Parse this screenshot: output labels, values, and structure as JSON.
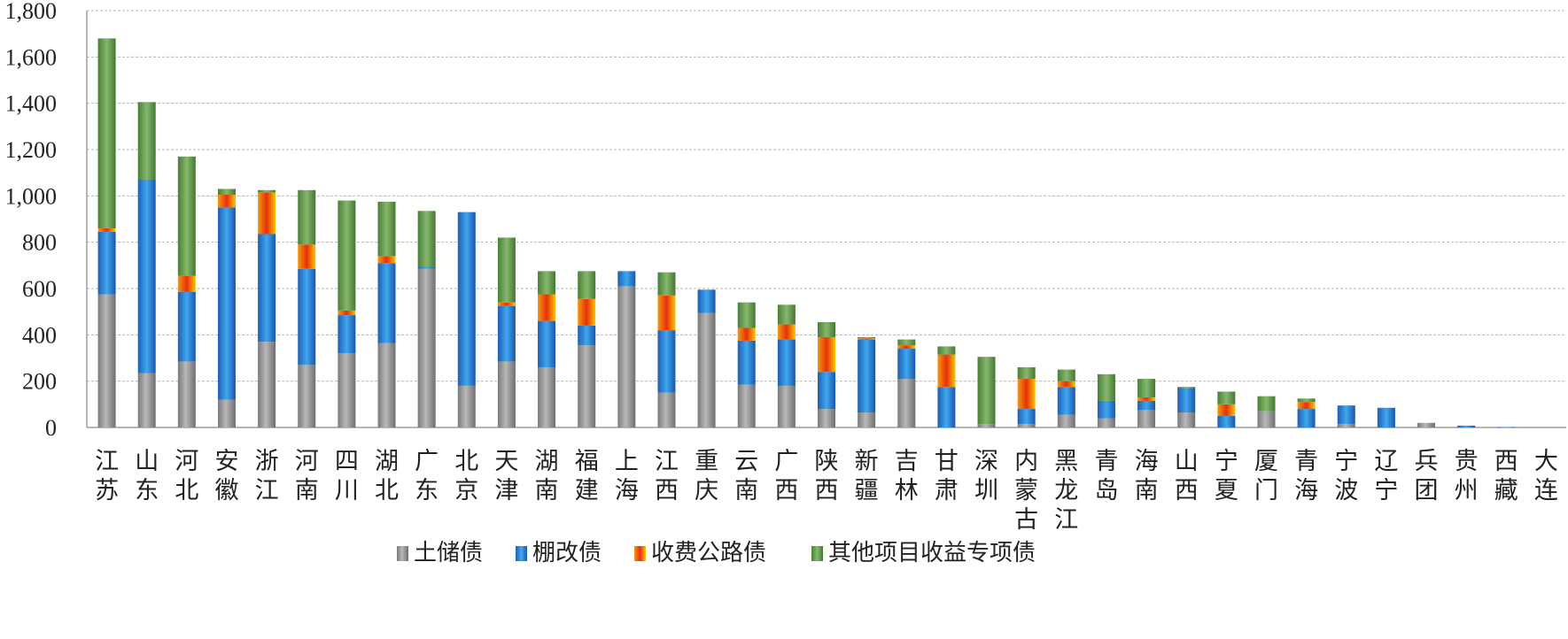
{
  "chart_data": {
    "type": "bar",
    "stacked": true,
    "ylim": [
      0,
      1800
    ],
    "y_ticks": [
      "0",
      "200",
      "400",
      "600",
      "800",
      "1,000",
      "1,200",
      "1,400",
      "1,600",
      "1,800"
    ],
    "grid": true,
    "legend_position": "bottom",
    "categories": [
      "江苏",
      "山东",
      "河北",
      "安徽",
      "浙江",
      "河南",
      "四川",
      "湖北",
      "广东",
      "北京",
      "天津",
      "湖南",
      "福建",
      "上海",
      "江西",
      "重庆",
      "云南",
      "广西",
      "陕西",
      "新疆",
      "吉林",
      "甘肃",
      "深圳",
      "内蒙古",
      "黑龙江",
      "青岛",
      "海南",
      "山西",
      "宁夏",
      "厦门",
      "青海",
      "宁波",
      "辽宁",
      "兵团",
      "贵州",
      "西藏",
      "大连"
    ],
    "series": [
      {
        "name": "土储债",
        "color": "#8c8c8c",
        "values": [
          575,
          235,
          285,
          120,
          370,
          270,
          320,
          365,
          685,
          180,
          285,
          260,
          355,
          610,
          150,
          495,
          185,
          180,
          80,
          65,
          210,
          0,
          15,
          15,
          55,
          40,
          75,
          65,
          0,
          70,
          0,
          15,
          0,
          20,
          0,
          0,
          0
        ]
      },
      {
        "name": "棚改债",
        "color": "#2a7fd0",
        "values": [
          270,
          835,
          300,
          830,
          465,
          415,
          165,
          345,
          10,
          750,
          240,
          200,
          85,
          65,
          270,
          100,
          190,
          200,
          160,
          315,
          130,
          175,
          0,
          65,
          120,
          75,
          40,
          105,
          50,
          0,
          80,
          80,
          85,
          0,
          8,
          2,
          0
        ]
      },
      {
        "name": "收费公路债",
        "color": "#f08a10",
        "values": [
          15,
          0,
          70,
          55,
          180,
          105,
          20,
          30,
          0,
          0,
          15,
          115,
          115,
          0,
          150,
          0,
          55,
          65,
          150,
          5,
          15,
          140,
          0,
          130,
          25,
          0,
          15,
          0,
          50,
          0,
          30,
          0,
          0,
          0,
          0,
          0,
          0
        ]
      },
      {
        "name": "其他项目收益专项债",
        "color": "#5e9a48",
        "values": [
          820,
          335,
          515,
          25,
          10,
          235,
          475,
          235,
          240,
          0,
          280,
          100,
          120,
          0,
          100,
          0,
          110,
          85,
          65,
          5,
          25,
          35,
          290,
          50,
          50,
          115,
          80,
          5,
          55,
          65,
          15,
          0,
          0,
          0,
          0,
          0,
          0
        ]
      }
    ]
  }
}
